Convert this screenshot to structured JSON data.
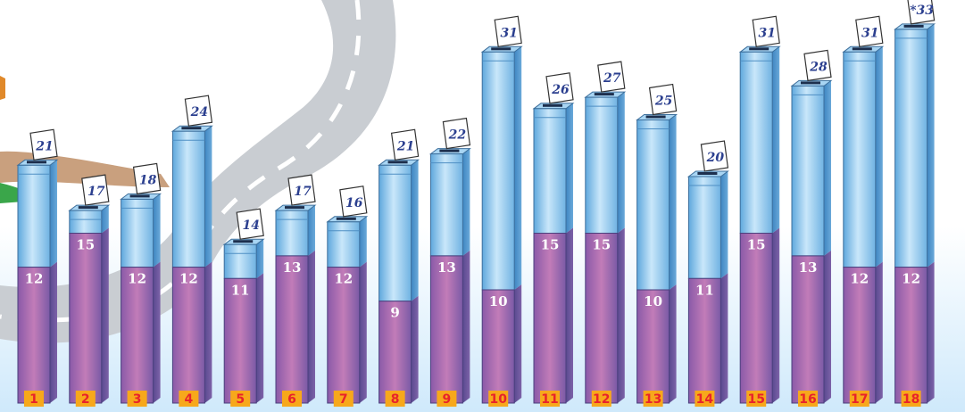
{
  "chart_data": {
    "type": "bar",
    "categories": [
      "1",
      "2",
      "3",
      "4",
      "5",
      "6",
      "7",
      "8",
      "9",
      "10",
      "11",
      "12",
      "13",
      "14",
      "15",
      "16",
      "17",
      "18"
    ],
    "series": [
      {
        "values": [
          12,
          15,
          12,
          12,
          11,
          13,
          12,
          9,
          13,
          10,
          15,
          15,
          10,
          11,
          15,
          13,
          12,
          12
        ]
      },
      {
        "values": [
          21,
          17,
          18,
          24,
          14,
          17,
          16,
          21,
          22,
          31,
          26,
          27,
          25,
          20,
          31,
          28,
          31,
          33
        ]
      }
    ],
    "total_labels": [
      "21",
      "17",
      "18",
      "24",
      "14",
      "17",
      "16",
      "21",
      "22",
      "31",
      "26",
      "27",
      "25",
      "20",
      "31",
      "28",
      "31",
      "*33"
    ],
    "lower_labels": [
      "12",
      "15",
      "12",
      "12",
      "11",
      "13",
      "12",
      "9",
      "13",
      "10",
      "15",
      "15",
      "10",
      "11",
      "15",
      "13",
      "12",
      "12"
    ],
    "ylim": [
      0,
      34
    ],
    "colors": {
      "lower_segment": "#b86fb0",
      "upper_segment": "#8fc6ea",
      "category_badge": "#f7a81b",
      "category_text": "#e8232a",
      "value_label": "#2b3f8f",
      "road": "#c9cdd2",
      "sky": "#d8eefc"
    },
    "legend": "none",
    "grid": false
  }
}
